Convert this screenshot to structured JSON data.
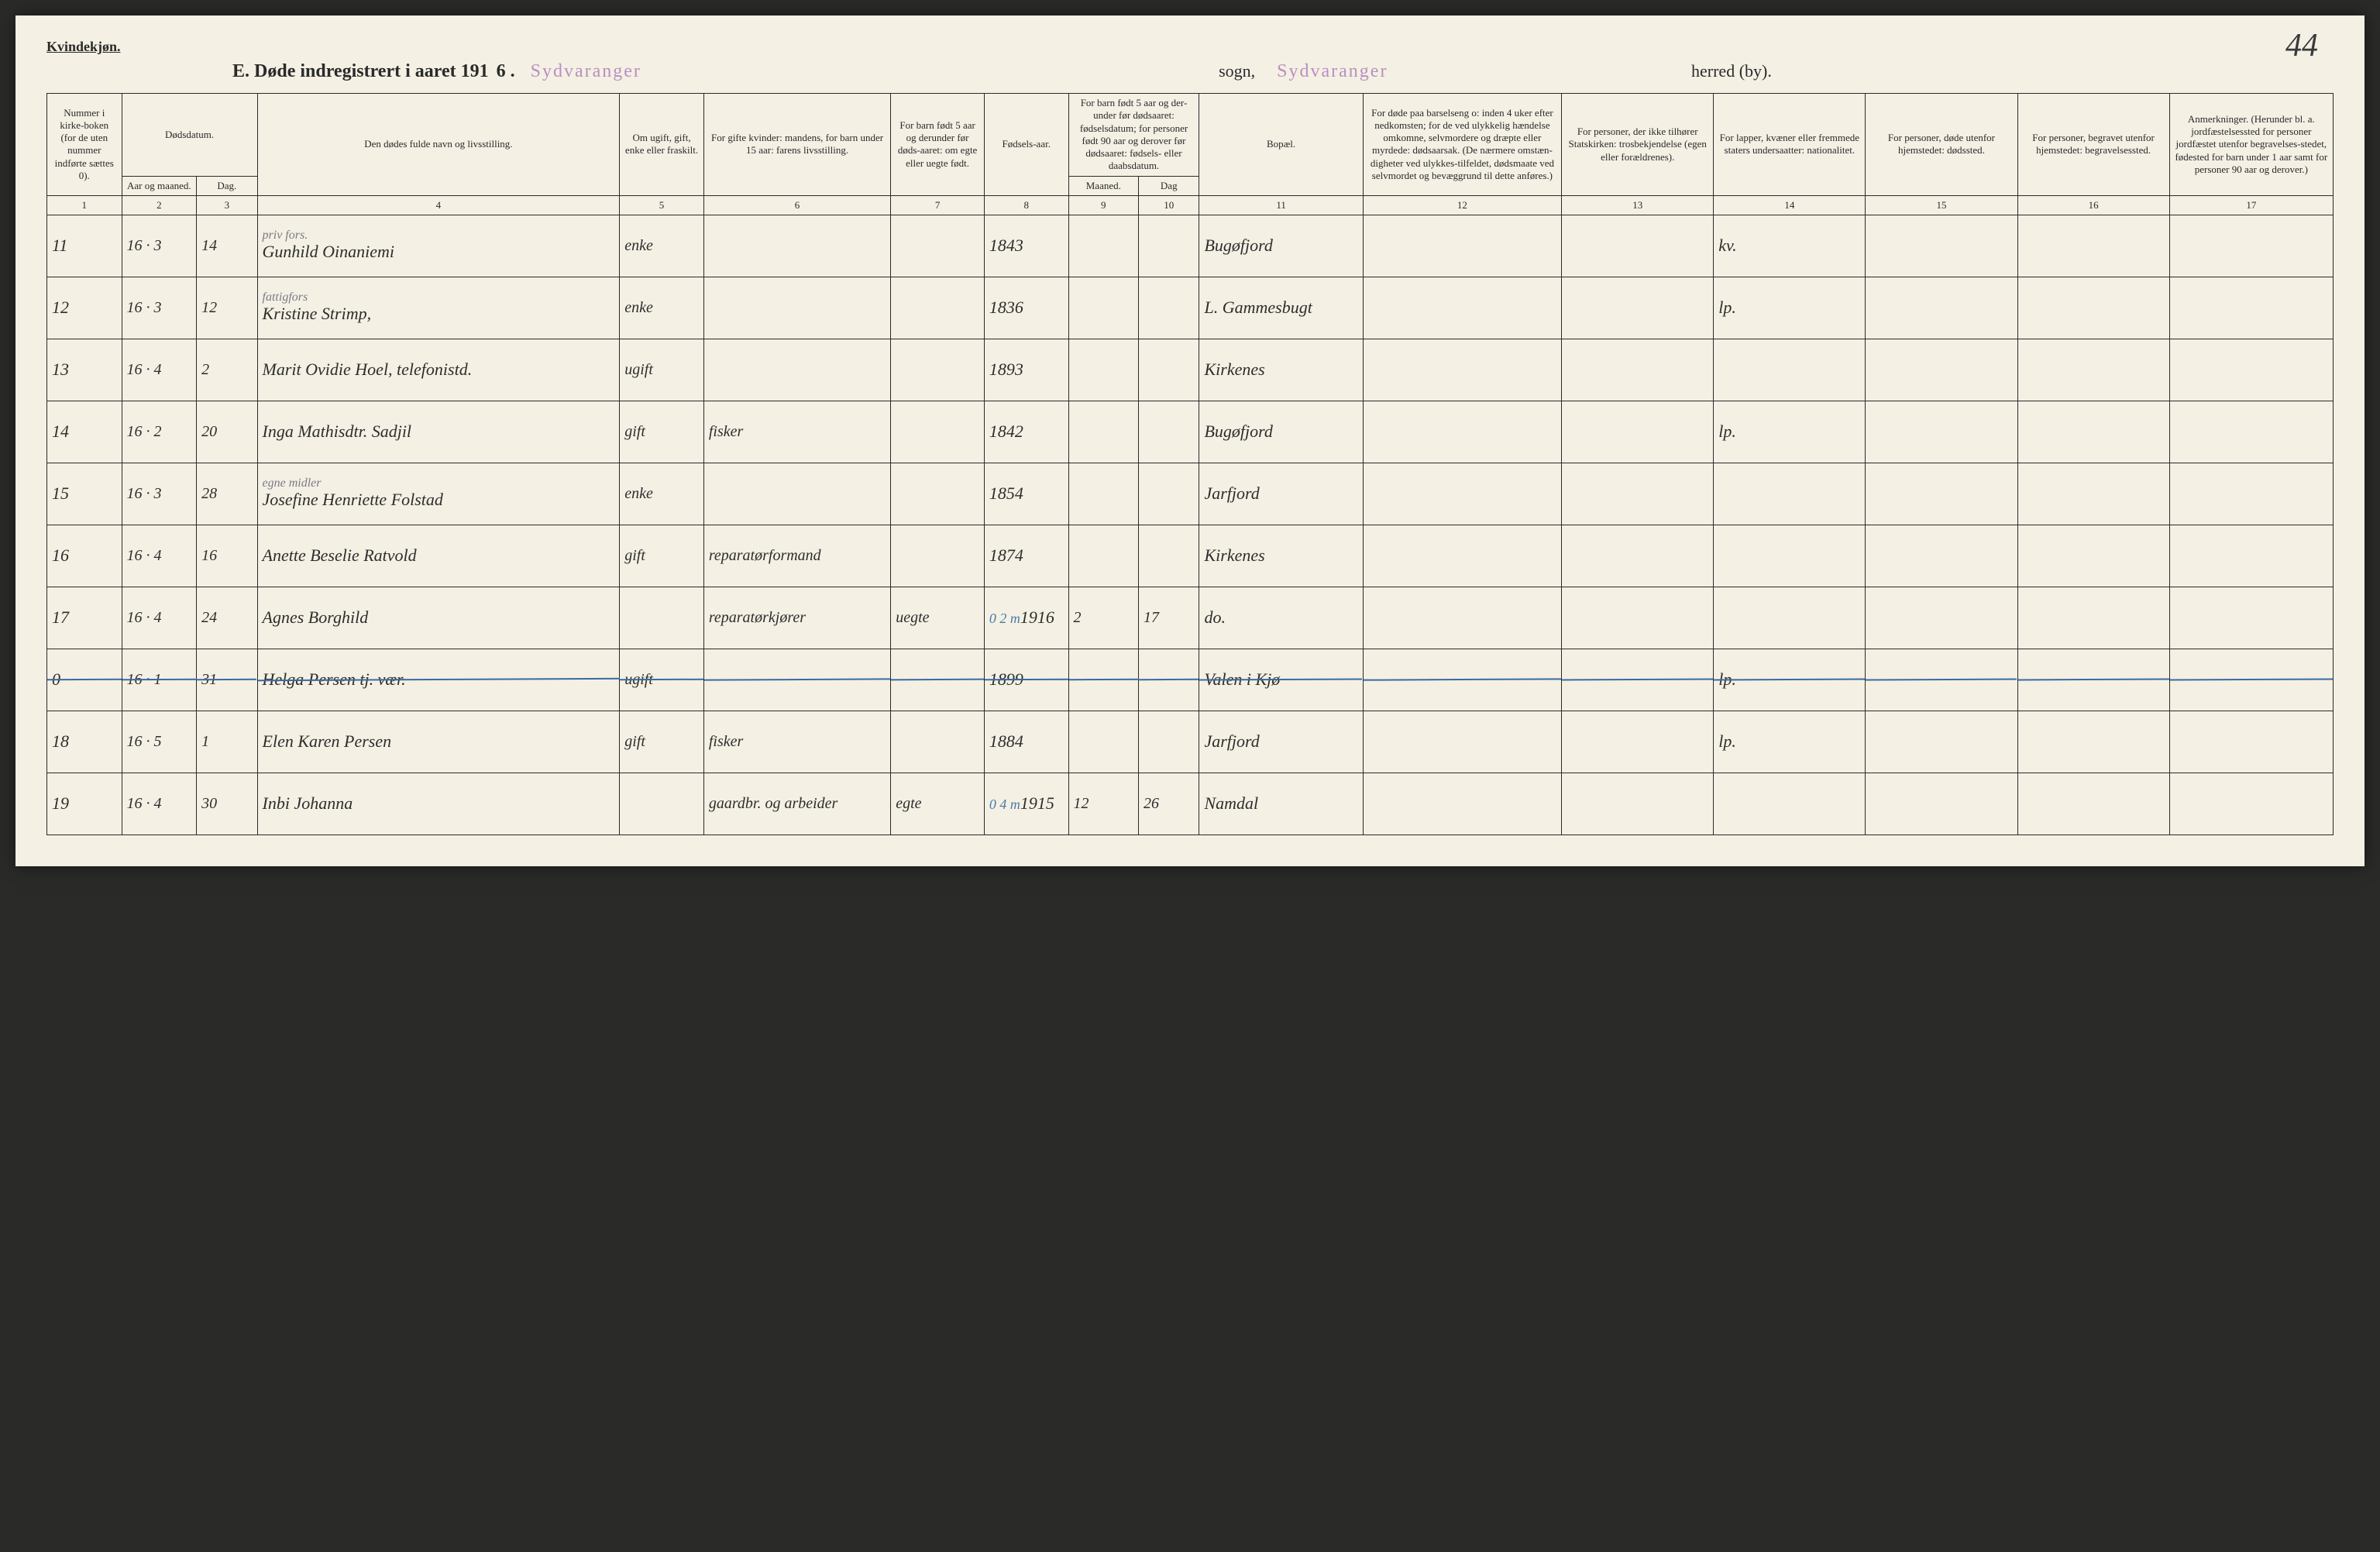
{
  "page_number_hand": "44",
  "top_label": "Kvindekjøn.",
  "title": {
    "prefix": "E.  Døde indregistrert i aaret 191",
    "year_suffix": "6 .",
    "stamp1": "Sydvaranger",
    "word_sogn": "sogn,",
    "stamp2": "Sydvaranger",
    "word_herred": "herred (by)."
  },
  "colors": {
    "paper": "#f4f0e4",
    "ink": "#2a2a2a",
    "stamp": "#b98fc0",
    "pencil": "#7a7a85",
    "blue": "#4a7aa8"
  },
  "headers": {
    "c1": "Nummer i kirke-boken (for de uten nummer indførte sættes 0).",
    "c2_top": "Dødsdatum.",
    "c2a": "Aar og maaned.",
    "c2b": "Dag.",
    "c4": "Den dødes fulde navn og livsstilling.",
    "c5": "Om ugift, gift, enke eller fraskilt.",
    "c6": "For gifte kvinder: mandens, for barn under 15 aar: farens livsstilling.",
    "c7": "For barn født 5 aar og derunder før døds-aaret: om egte eller uegte født.",
    "c8": "Fødsels-aar.",
    "c9_top": "For barn født 5 aar og der-under før dødsaaret: fødselsdatum; for personer født 90 aar og derover før dødsaaret: fødsels- eller daabsdatum.",
    "c9a": "Maaned.",
    "c9b": "Dag",
    "c11": "Bopæl.",
    "c12": "For døde paa barselseng o: inden 4 uker efter nedkomsten; for de ved ulykkelig hændelse omkomne, selvmordere og dræpte eller myrdede: dødsaarsak. (De nærmere omstæn-digheter ved ulykkes-tilfeldet, dødsmaate ved selvmordet og bevæggrund til dette anføres.)",
    "c13": "For personer, der ikke tilhører Statskirken: trosbekjendelse (egen eller forældrenes).",
    "c14": "For lapper, kvæner eller fremmede staters undersaatter: nationalitet.",
    "c15": "For personer, døde utenfor hjemstedet: dødssted.",
    "c16": "For personer, begravet utenfor hjemstedet: begravelsessted.",
    "c17": "Anmerkninger. (Herunder bl. a. jordfæstelsessted for personer jordfæstet utenfor begravelses-stedet, fødested for barn under 1 aar samt for personer 90 aar og derover.)"
  },
  "colnums": [
    "1",
    "2",
    "3",
    "4",
    "5",
    "6",
    "7",
    "8",
    "9",
    "10",
    "11",
    "12",
    "13",
    "14",
    "15",
    "16",
    "17"
  ],
  "rows": [
    {
      "num": "11",
      "ym": "16 · 3",
      "day": "14",
      "name": "Gunhild Oinaniemi",
      "name_annot": "priv fors.",
      "status": "enke",
      "c6": "",
      "c7": "",
      "year": "1843",
      "m": "",
      "d": "",
      "place": "Bugøfjord",
      "c12": "",
      "c13": "",
      "nat": "kv.",
      "c15": "",
      "c16": "",
      "c17": "",
      "struck": false
    },
    {
      "num": "12",
      "ym": "16 · 3",
      "day": "12",
      "name": "Kristine Strimp,",
      "name_annot": "fattigfors",
      "status": "enke",
      "c6": "",
      "c7": "",
      "year": "1836",
      "m": "",
      "d": "",
      "place": "L. Gammesbugt",
      "c12": "",
      "c13": "",
      "nat": "lp.",
      "c15": "",
      "c16": "",
      "c17": "",
      "struck": false
    },
    {
      "num": "13",
      "ym": "16 · 4",
      "day": "2",
      "name": "Marit Ovidie Hoel, telefonistd.",
      "name_annot": "",
      "status": "ugift",
      "c6": "",
      "c7": "",
      "year": "1893",
      "m": "",
      "d": "",
      "place": "Kirkenes",
      "c12": "",
      "c13": "",
      "nat": "",
      "c15": "",
      "c16": "",
      "c17": "",
      "struck": false
    },
    {
      "num": "14",
      "ym": "16 · 2",
      "day": "20",
      "name": "Inga Mathisdtr. Sadjil",
      "name_annot": "",
      "status": "gift",
      "c6": "fisker",
      "c7": "",
      "year": "1842",
      "m": "",
      "d": "",
      "place": "Bugøfjord",
      "c12": "",
      "c13": "",
      "nat": "lp.",
      "c15": "",
      "c16": "",
      "c17": "",
      "struck": false
    },
    {
      "num": "15",
      "ym": "16 · 3",
      "day": "28",
      "name": "Josefine Henriette Folstad",
      "name_annot": "egne midler",
      "status": "enke",
      "c6": "",
      "c7": "",
      "year": "1854",
      "m": "",
      "d": "",
      "place": "Jarfjord",
      "c12": "",
      "c13": "",
      "nat": "",
      "c15": "",
      "c16": "",
      "c17": "",
      "struck": false
    },
    {
      "num": "16",
      "ym": "16 · 4",
      "day": "16",
      "name": "Anette Beselie Ratvold",
      "name_annot": "",
      "status": "gift",
      "c6": "reparatørformand",
      "c7": "",
      "year": "1874",
      "m": "",
      "d": "",
      "place": "Kirkenes",
      "c12": "",
      "c13": "",
      "nat": "",
      "c15": "",
      "c16": "",
      "c17": "",
      "struck": false
    },
    {
      "num": "17",
      "ym": "16 · 4",
      "day": "24",
      "name": "Agnes Borghild",
      "name_annot": "",
      "status": "",
      "c6": "reparatørkjører",
      "c7": "uegte",
      "year": "1916",
      "year_annot": "0 2 m",
      "m": "2",
      "d": "17",
      "place": "do.",
      "c12": "",
      "c13": "",
      "nat": "",
      "c15": "",
      "c16": "",
      "c17": "",
      "struck": false
    },
    {
      "num": "0",
      "ym": "16 · 1",
      "day": "31",
      "name": "Helga Persen tj. vær.",
      "name_annot": "",
      "status": "ugift",
      "c6": "",
      "c7": "",
      "year": "1899",
      "m": "",
      "d": "",
      "place": "Valen i Kjø",
      "c12": "",
      "c13": "",
      "nat": "lp.",
      "c15": "",
      "c16": "",
      "c17": "",
      "struck": true
    },
    {
      "num": "18",
      "ym": "16 · 5",
      "day": "1",
      "name": "Elen Karen Persen",
      "name_annot": "",
      "status": "gift",
      "c6": "fisker",
      "c7": "",
      "year": "1884",
      "m": "",
      "d": "",
      "place": "Jarfjord",
      "c12": "",
      "c13": "",
      "nat": "lp.",
      "c15": "",
      "c16": "",
      "c17": "",
      "struck": false
    },
    {
      "num": "19",
      "ym": "16 · 4",
      "day": "30",
      "name": "Inbi Johanna",
      "name_annot": "",
      "status": "",
      "c6": "gaardbr. og arbeider",
      "c7": "egte",
      "year": "1915",
      "year_annot": "0 4 m",
      "m": "12",
      "d": "26",
      "place": "Namdal",
      "c12": "",
      "c13": "",
      "nat": "",
      "c15": "",
      "c16": "",
      "c17": "",
      "struck": false
    }
  ]
}
